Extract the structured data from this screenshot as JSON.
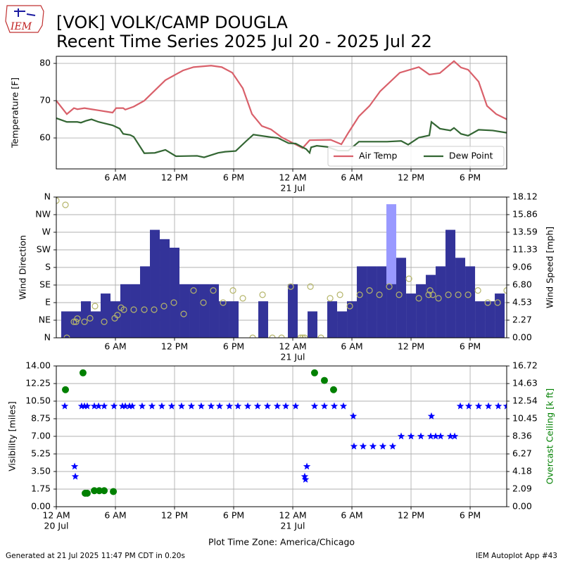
{
  "header": {
    "logo": "IEM",
    "title": "[VOK] VOLK/CAMP DOUGLA",
    "subtitle": "Recent Time Series 2025 Jul 20 - 2025 Jul 22"
  },
  "footer": {
    "left": "Generated at 21 Jul 2025 11:47 PM CDT in 0.20s",
    "right": "IEM Autoplot App #43"
  },
  "chart_data": [
    {
      "type": "line",
      "ylabel": "Temperature [F]",
      "xlim": [
        0,
        45.71
      ],
      "ylim": [
        51.7,
        81.9
      ],
      "yticks": [
        60,
        70,
        80
      ],
      "xticks": [
        {
          "value": 6,
          "label": "6 AM"
        },
        {
          "value": 12,
          "label": "12 PM"
        },
        {
          "value": 18,
          "label": "6 PM"
        },
        {
          "value": 24,
          "label": "12 AM",
          "sublabel": "21 Jul"
        },
        {
          "value": 30,
          "label": "6 AM"
        },
        {
          "value": 36,
          "label": "12 PM"
        },
        {
          "value": 42,
          "label": "6 PM"
        }
      ],
      "grid": true,
      "legend": "lower right",
      "series": [
        {
          "name": "Air Temp",
          "color": "#d9606a",
          "x": [
            0,
            1.07,
            1.79,
            2.14,
            2.86,
            3.57,
            4.29,
            5.71,
            6.07,
            6.79,
            7,
            7.86,
            8.93,
            11.07,
            12.86,
            13.93,
            15.71,
            16.79,
            17.86,
            18.93,
            19.86,
            20.86,
            21.79,
            22.86,
            25,
            25.71,
            27.86,
            28.93,
            29.64,
            30.71,
            31.79,
            32.86,
            34.86,
            36.79,
            37.86,
            38.93,
            40.36,
            41.07,
            41.79,
            42.86,
            43.71,
            44.64,
            45.71
          ],
          "values": [
            70,
            66.4,
            68,
            67.7,
            68,
            67.7,
            67.4,
            66.8,
            68,
            68,
            67.6,
            68.4,
            70,
            75.5,
            78.1,
            79,
            79.4,
            79,
            77.5,
            73.3,
            66.4,
            63.2,
            62.3,
            60.2,
            57.3,
            59.4,
            59.5,
            58.3,
            61.4,
            65.8,
            68.6,
            72.5,
            77.5,
            79,
            77,
            77.4,
            80.6,
            78.9,
            78.3,
            75.1,
            68.6,
            66.4,
            65
          ]
        },
        {
          "name": "Dew Point",
          "color": "#336633",
          "x": [
            0,
            1.07,
            2.14,
            2.5,
            3,
            3.57,
            4.29,
            5.71,
            6.43,
            6.79,
            7.5,
            7.86,
            8.93,
            10,
            11.07,
            12.14,
            14.29,
            15,
            16.43,
            17.14,
            18.21,
            19.29,
            20,
            21.79,
            22.5,
            23.57,
            24.29,
            25.36,
            25.71,
            25.86,
            26.43,
            27.5,
            28.57,
            29.64,
            30.71,
            33.57,
            35,
            35.71,
            36.79,
            37.86,
            38.07,
            38.93,
            40,
            40.36,
            41.07,
            41.79,
            42.86,
            44.29,
            45.71
          ],
          "values": [
            65.3,
            64.3,
            64.3,
            64.1,
            64.6,
            65,
            64.3,
            63.4,
            62.5,
            61.1,
            60.8,
            60.3,
            55.9,
            56,
            56.8,
            55.1,
            55.2,
            54.8,
            56,
            56.3,
            56.5,
            59.2,
            60.9,
            60.2,
            60,
            58.6,
            58.5,
            57,
            56,
            57.5,
            57.9,
            57.6,
            56.6,
            56.6,
            59,
            59,
            59.2,
            58.2,
            60.1,
            60.7,
            64.3,
            62.5,
            62,
            62.7,
            61.1,
            60.6,
            62.2,
            62,
            61.4
          ]
        }
      ]
    },
    {
      "type": "bar",
      "ylabel": "Wind Direction",
      "y2label": "Wind Speed [mph]",
      "xlim": [
        0,
        45.71
      ],
      "ylim": [
        0,
        360
      ],
      "yticks": [
        {
          "value": 0,
          "label": "N"
        },
        {
          "value": 45,
          "label": "NE"
        },
        {
          "value": 90,
          "label": "E"
        },
        {
          "value": 135,
          "label": "SE"
        },
        {
          "value": 180,
          "label": "S"
        },
        {
          "value": 225,
          "label": "SW"
        },
        {
          "value": 270,
          "label": "W"
        },
        {
          "value": 315,
          "label": "NW"
        },
        {
          "value": 360,
          "label": "N"
        }
      ],
      "y2lim": [
        0,
        18.12
      ],
      "y2ticks": [
        {
          "value": 0,
          "label": "0.00"
        },
        2.27,
        4.53,
        {
          "value": 6.8,
          "label": "6.80"
        },
        9.06,
        11.33,
        13.59,
        15.86,
        18.12
      ],
      "xticks": [
        {
          "value": 6,
          "label": "6 AM"
        },
        {
          "value": 12,
          "label": "12 PM"
        },
        {
          "value": 18,
          "label": "6 PM"
        },
        {
          "value": 24,
          "label": "12 AM",
          "sublabel": "21 Jul"
        },
        {
          "value": 30,
          "label": "6 AM"
        },
        {
          "value": 36,
          "label": "12 PM"
        },
        {
          "value": 42,
          "label": "6 PM"
        }
      ],
      "grid": true,
      "series": [
        {
          "type": "bar",
          "axis": "y2",
          "color": "#9999ff",
          "x": [
            34
          ],
          "values": [
            17.2
          ]
        },
        {
          "type": "bar",
          "axis": "y2",
          "color": "#333399",
          "x": [
            1,
            2,
            3,
            4,
            5,
            6,
            7,
            8,
            9,
            10,
            11,
            12,
            13,
            14,
            15,
            16,
            17,
            18,
            19,
            20,
            21,
            22,
            23,
            24,
            25,
            26,
            27,
            28,
            29,
            30,
            31,
            32,
            33,
            34,
            35,
            36,
            37,
            38,
            39,
            40,
            41,
            42,
            43,
            44,
            45
          ],
          "values": [
            3.4,
            3.4,
            4.7,
            3.4,
            5.7,
            4.7,
            6.9,
            6.9,
            9.2,
            13.9,
            12.7,
            11.6,
            6.9,
            6.9,
            6.9,
            6.9,
            4.7,
            4.7,
            0,
            0,
            4.7,
            0,
            0,
            6.9,
            0,
            3.4,
            0,
            4.7,
            3.4,
            4.7,
            9.2,
            9.2,
            9.2,
            6.9,
            10.3,
            5.7,
            6.9,
            8.1,
            9.2,
            13.9,
            10.3,
            9.2,
            4.7,
            4.7,
            5.7
          ]
        },
        {
          "type": "circle",
          "color": "#b5b56a",
          "x": [
            0,
            0.93,
            1.07,
            1.79,
            2,
            2.14,
            2.86,
            3.43,
            3.93,
            4.86,
            5.93,
            6.21,
            6.57,
            6.86,
            7.86,
            8.93,
            9.93,
            10.93,
            11.93,
            12.93,
            13.93,
            14.93,
            15.93,
            16.93,
            17.93,
            18.93,
            19.93,
            20.93,
            21.93,
            22.86,
            23.79,
            24.79,
            25,
            25.21,
            25.79,
            26.86,
            27.79,
            28.79,
            29.79,
            30.79,
            31.79,
            32.79,
            33.79,
            34.79,
            35.79,
            36.79,
            37.79,
            37.93,
            38.21,
            38.79,
            39.79,
            40.79,
            41.79,
            42.79,
            43.79,
            44.79,
            45.71
          ],
          "values": [
            351,
            340,
            0,
            41,
            41,
            49,
            41,
            50,
            81,
            41,
            50,
            58,
            77,
            72,
            72,
            72,
            72,
            81,
            90,
            61,
            121,
            90,
            121,
            90,
            121,
            101,
            0,
            110,
            0,
            0,
            131,
            0,
            0,
            0,
            131,
            0,
            101,
            110,
            81,
            110,
            121,
            110,
            131,
            110,
            151,
            101,
            110,
            121,
            110,
            101,
            110,
            110,
            110,
            121,
            90,
            90,
            121
          ]
        }
      ]
    },
    {
      "type": "scatter",
      "ylabel": "Visibility [miles]",
      "y2label": "Overcast Ceiling [k ft]",
      "xlabel": "Plot Time Zone: America/Chicago",
      "xlim": [
        0,
        45.71
      ],
      "ylim": [
        0,
        14
      ],
      "yticks": [
        {
          "value": 0,
          "label": "0.00"
        },
        1.75,
        {
          "value": 3.5,
          "label": "3.50"
        },
        5.25,
        {
          "value": 7,
          "label": "7.00"
        },
        8.75,
        {
          "value": 10.5,
          "label": "10.50"
        },
        12.25,
        {
          "value": 14,
          "label": "14.00"
        }
      ],
      "y2lim": [
        0,
        16.72
      ],
      "y2ticks": [
        {
          "value": 0,
          "label": "0.00"
        },
        2.09,
        4.18,
        6.27,
        8.36,
        10.45,
        12.54,
        14.63,
        16.72
      ],
      "xticks": [
        {
          "value": 0,
          "label": "12 AM",
          "sublabel": "20 Jul"
        },
        {
          "value": 6,
          "label": "6 AM"
        },
        {
          "value": 12,
          "label": "12 PM"
        },
        {
          "value": 18,
          "label": "6 PM"
        },
        {
          "value": 24,
          "label": "12 AM",
          "sublabel": "21 Jul"
        },
        {
          "value": 30,
          "label": "6 AM"
        },
        {
          "value": 36,
          "label": "12 PM"
        },
        {
          "value": 42,
          "label": "6 PM"
        }
      ],
      "grid": true,
      "series": [
        {
          "type": "star",
          "color": "#0000ff",
          "x": [
            0.86,
            1.86,
            1.93,
            2.57,
            2.86,
            3.14,
            3.86,
            4.29,
            4.86,
            5.86,
            6.71,
            7,
            7.43,
            7.71,
            8.71,
            9.71,
            10.71,
            11.71,
            12.71,
            13.71,
            14.71,
            15.71,
            16.57,
            17.57,
            18.43,
            19.43,
            20.43,
            21.43,
            22.43,
            23.29,
            24.29,
            25.21,
            25.29,
            25.43,
            26.21,
            27.21,
            28.21,
            29.14,
            30.14,
            30.21,
            31.14,
            32.14,
            33.14,
            34.14,
            35,
            36,
            37,
            38,
            38.07,
            38.5,
            39,
            40,
            40.43,
            41,
            41.86,
            42.86,
            43.86,
            44.86,
            45.71
          ],
          "values": [
            10,
            4,
            3,
            10,
            10,
            10,
            10,
            10,
            10,
            10,
            10,
            10,
            10,
            10,
            10,
            10,
            10,
            10,
            10,
            10,
            10,
            10,
            10,
            10,
            10,
            10,
            10,
            10,
            10,
            10,
            10,
            3,
            2.7,
            4,
            10,
            10,
            10,
            10,
            9,
            6,
            6,
            6,
            6,
            6,
            7,
            7,
            7,
            7,
            9,
            7,
            7,
            7,
            7,
            10,
            10,
            10,
            10,
            10,
            10
          ]
        },
        {
          "type": "circle",
          "axis": "y2",
          "color": "#008000",
          "x": [
            0.93,
            2.71,
            2.93,
            3.14,
            3.86,
            4.36,
            4.86,
            5.79,
            26.21,
            27.21,
            28.14
          ],
          "values": [
            13.9,
            15.9,
            1.6,
            1.6,
            1.9,
            1.9,
            1.9,
            1.8,
            15.9,
            15,
            13.9
          ]
        }
      ]
    }
  ]
}
